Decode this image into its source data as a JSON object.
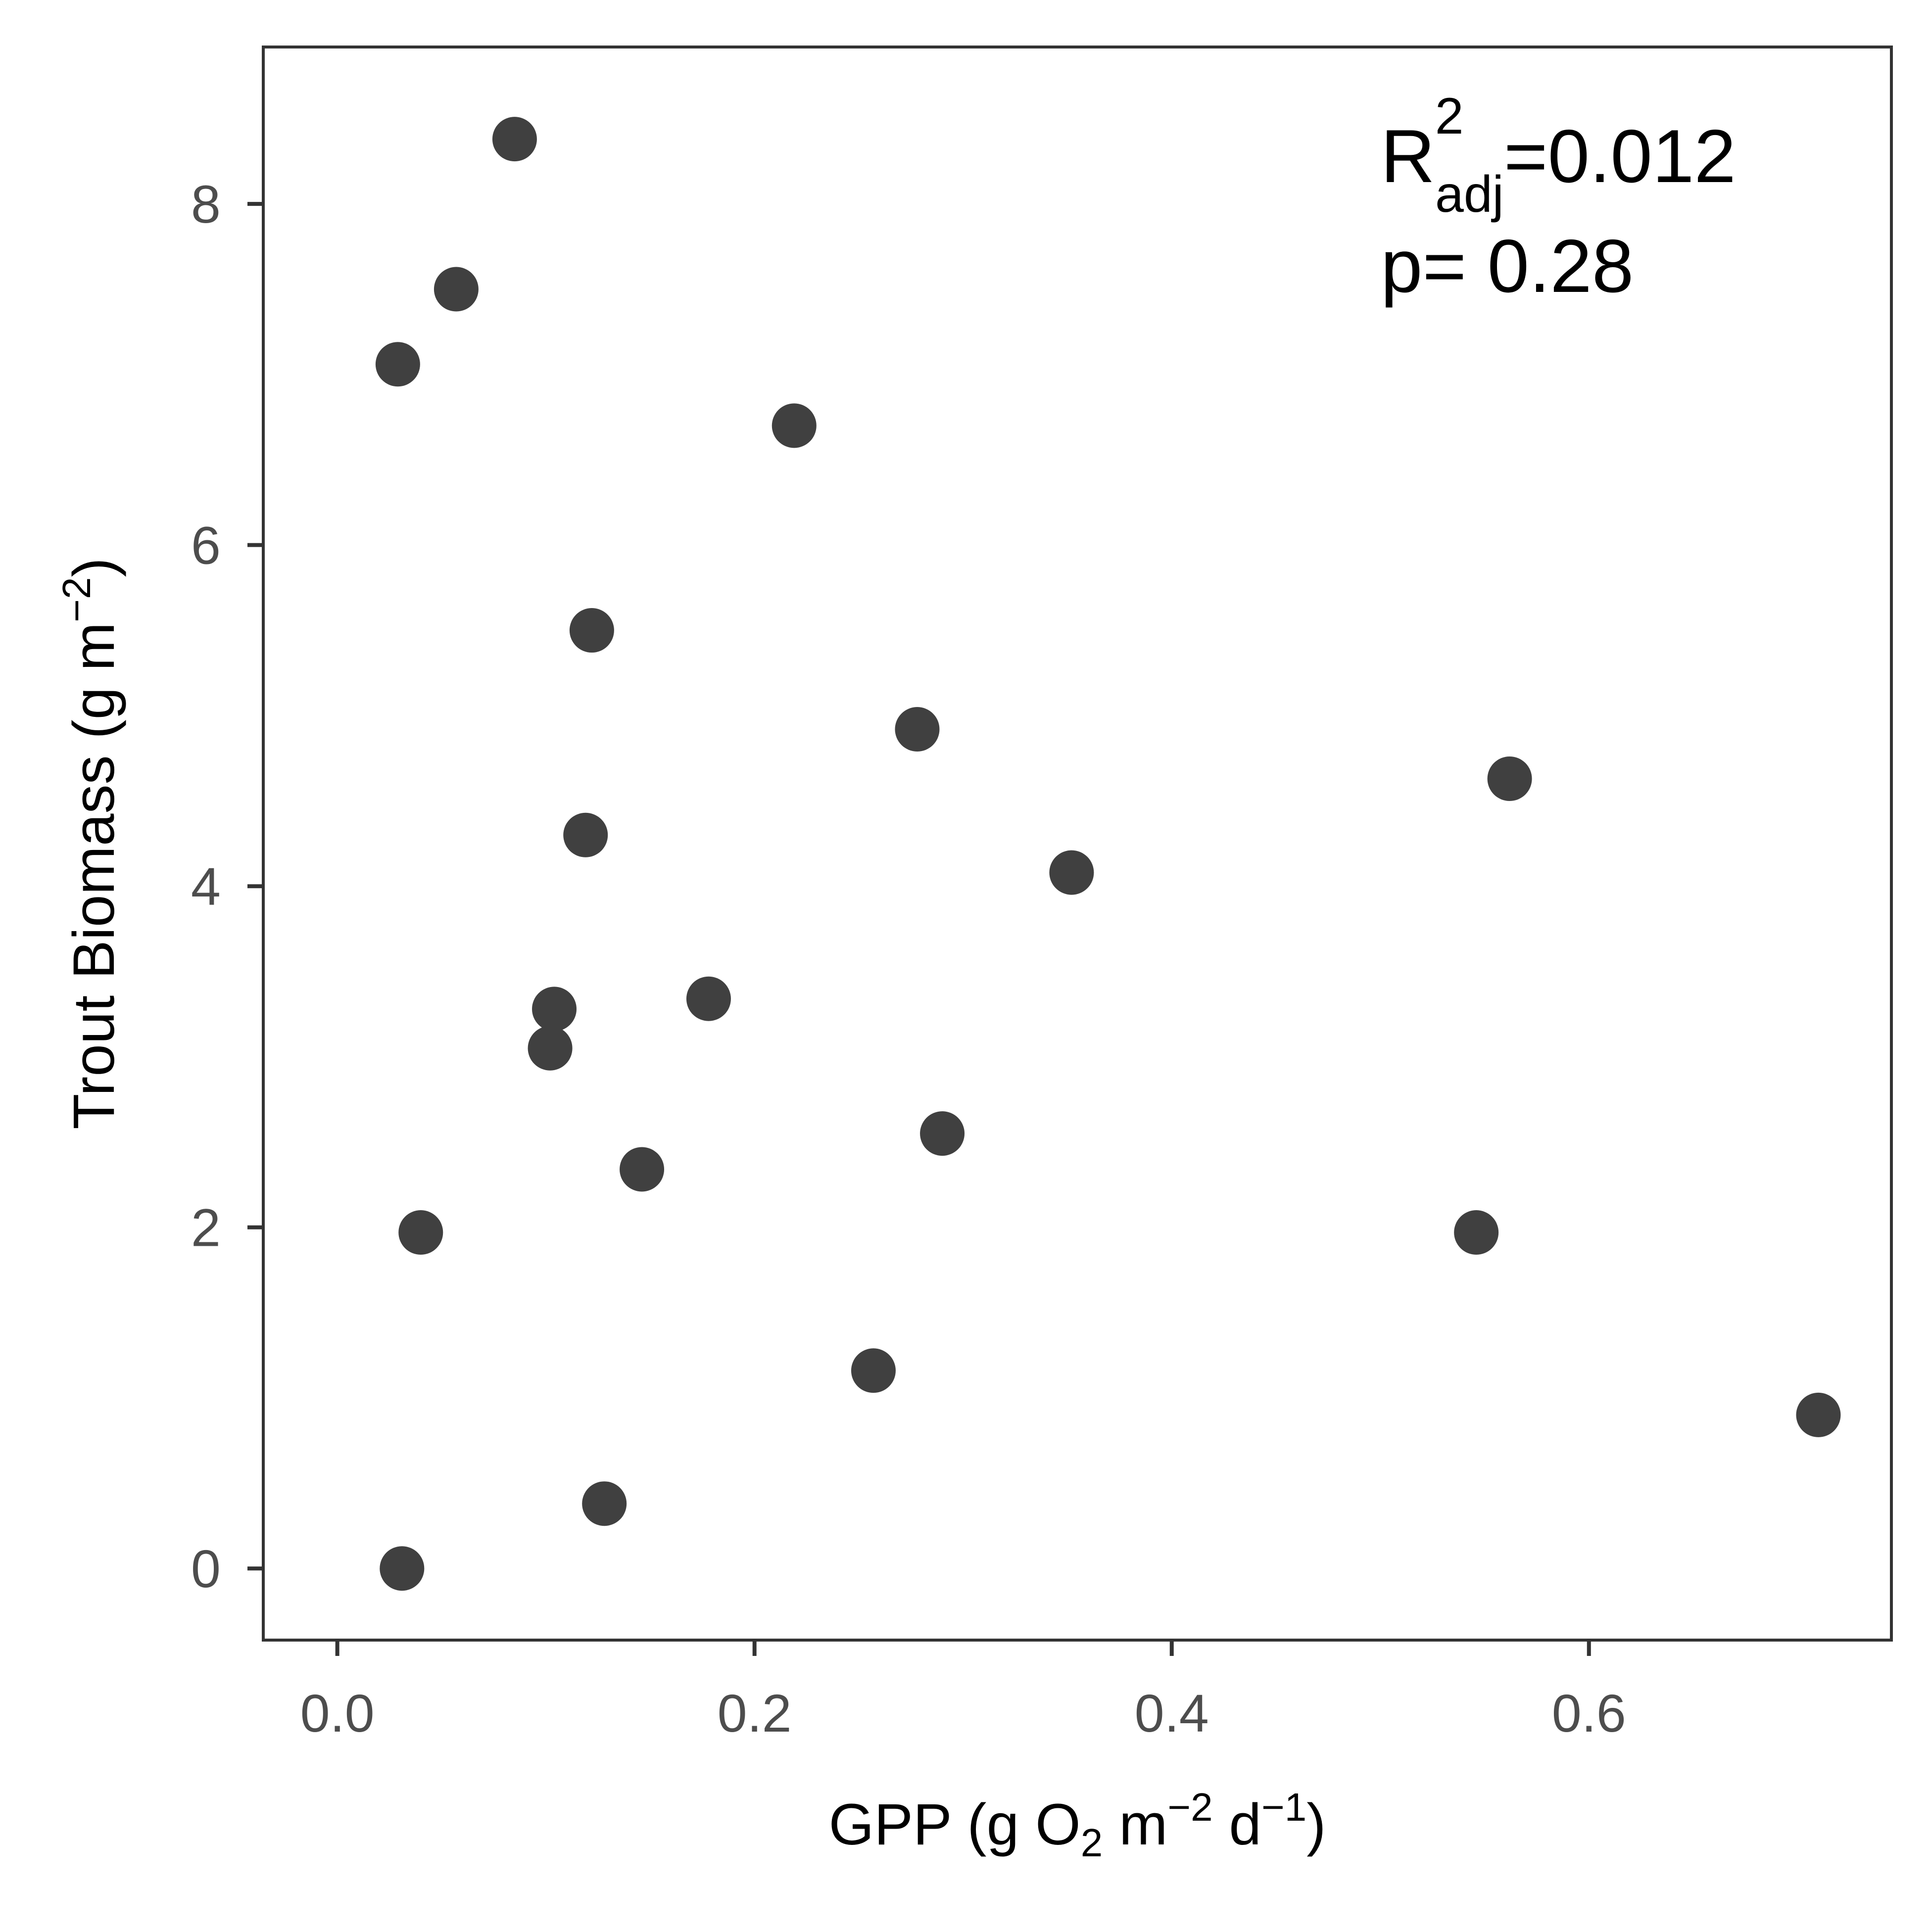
{
  "chart_data": {
    "type": "scatter",
    "xlabel": {
      "base": "GPP (g O",
      "sub1": "2",
      "mid": " m",
      "sup1": "−2",
      "mid2": " d",
      "sup2": "−1",
      "end": ")"
    },
    "ylabel": {
      "base": "Trout Biomass (g m",
      "sup": "−2",
      "end": ")"
    },
    "xlim": [
      -0.0355,
      0.745
    ],
    "ylim": [
      -0.42,
      8.92
    ],
    "x_ticks": [
      "0.0",
      "0.2",
      "0.4",
      "0.6"
    ],
    "x_tick_values": [
      0.0,
      0.2,
      0.4,
      0.6
    ],
    "y_ticks": [
      "0",
      "2",
      "4",
      "6",
      "8"
    ],
    "y_tick_values": [
      0,
      2,
      4,
      6,
      8
    ],
    "grid": false,
    "point_color": "#404040",
    "annotation": {
      "r_label": "R",
      "r_sup": "2",
      "r_sub": "adj",
      "r_value": "=0.012",
      "p_text": "p= 0.28"
    },
    "points": [
      {
        "x": 0.085,
        "y": 8.38
      },
      {
        "x": 0.057,
        "y": 7.5
      },
      {
        "x": 0.029,
        "y": 7.06
      },
      {
        "x": 0.219,
        "y": 6.7
      },
      {
        "x": 0.122,
        "y": 5.5
      },
      {
        "x": 0.278,
        "y": 4.92
      },
      {
        "x": 0.562,
        "y": 4.63
      },
      {
        "x": 0.119,
        "y": 4.3
      },
      {
        "x": 0.352,
        "y": 4.08
      },
      {
        "x": 0.104,
        "y": 3.28
      },
      {
        "x": 0.178,
        "y": 3.34
      },
      {
        "x": 0.102,
        "y": 3.05
      },
      {
        "x": 0.29,
        "y": 2.55
      },
      {
        "x": 0.146,
        "y": 2.34
      },
      {
        "x": 0.04,
        "y": 1.97
      },
      {
        "x": 0.546,
        "y": 1.97
      },
      {
        "x": 0.257,
        "y": 1.16
      },
      {
        "x": 0.71,
        "y": 0.9
      },
      {
        "x": 0.128,
        "y": 0.38
      },
      {
        "x": 0.031,
        "y": 0.0
      }
    ]
  }
}
